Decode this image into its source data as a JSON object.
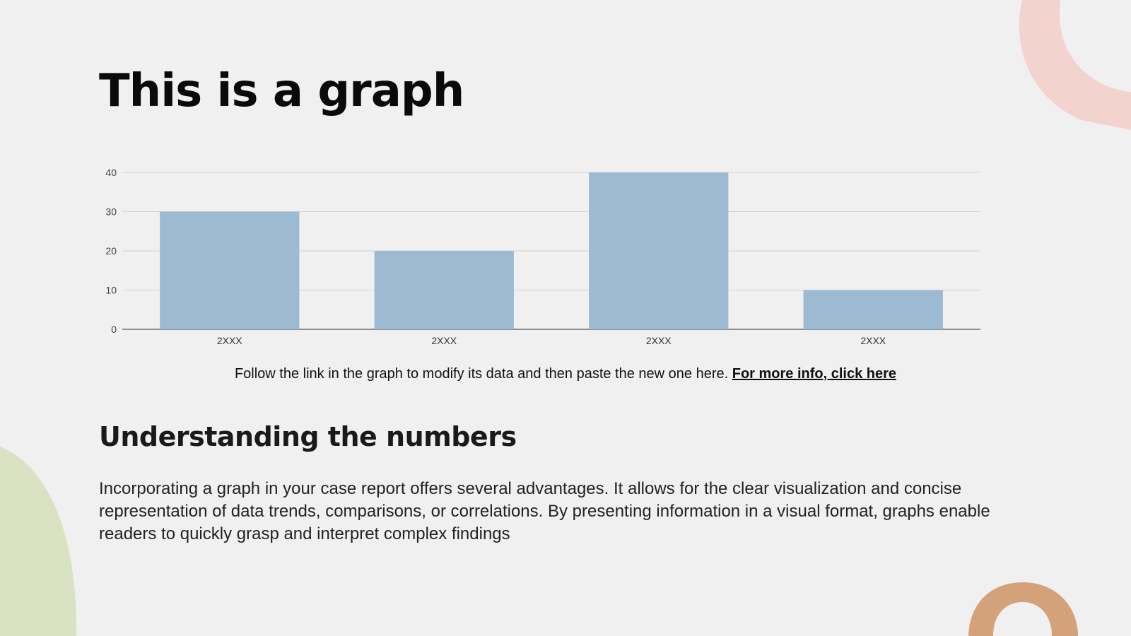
{
  "slide": {
    "title": "This is a graph",
    "caption_text": "Follow the link in the graph to modify its data and then paste the new one here.",
    "caption_link": "For more info, click here",
    "subtitle": "Understanding the numbers",
    "body": "Incorporating a graph in your case report offers several advantages. It allows for the clear visualization and concise representation of data trends, comparisons, or correlations. By presenting information in a visual format, graphs enable readers to quickly grasp and interpret complex findings"
  },
  "colors": {
    "background": "#f0f0f0",
    "bar": "#9dbad3",
    "deco_pink": "#f2d3cd",
    "deco_green": "#d9e3c3",
    "deco_tan": "#d4a27a"
  },
  "chart_data": {
    "type": "bar",
    "categories": [
      "2XXX",
      "2XXX",
      "2XXX",
      "2XXX"
    ],
    "values": [
      30,
      20,
      40,
      10
    ],
    "ylim": [
      0,
      40
    ],
    "yticks": [
      0,
      10,
      20,
      30,
      40
    ],
    "grid": true,
    "legend": "none",
    "title": "",
    "xlabel": "",
    "ylabel": ""
  }
}
